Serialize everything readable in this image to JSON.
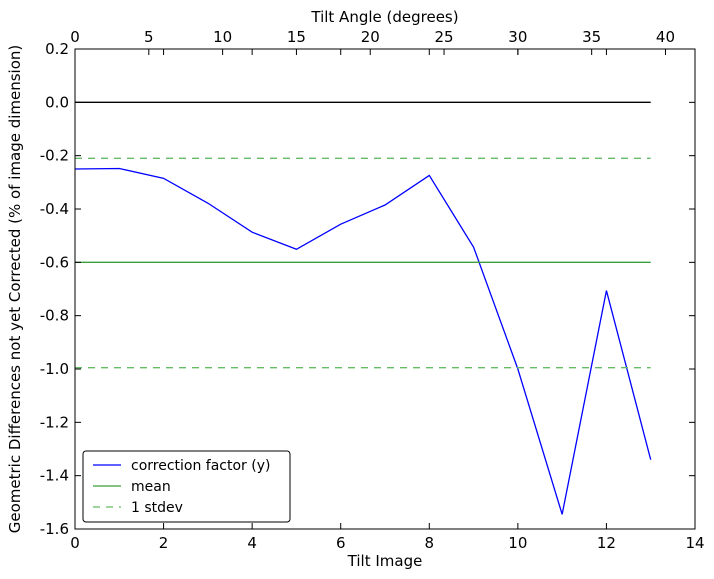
{
  "chart_data": {
    "type": "line",
    "title": "",
    "xlabel": "Tilt Image",
    "x2label": "Tilt Angle (degrees)",
    "ylabel": "Geometric Differences not yet Corrected (% of image dimension)",
    "xlim": [
      0,
      14
    ],
    "x2lim": [
      0,
      42
    ],
    "ylim": [
      -1.6,
      0.2
    ],
    "xticks": [
      0,
      2,
      4,
      6,
      8,
      10,
      12,
      14
    ],
    "x2ticks": [
      0,
      5,
      10,
      15,
      20,
      25,
      30,
      35,
      40
    ],
    "yticks": [
      -1.6,
      -1.4,
      -1.2,
      -1.0,
      -0.8,
      -0.6,
      -0.4,
      -0.2,
      0.0,
      0.2
    ],
    "ytick_labels": [
      "-1.6",
      "-1.4",
      "-1.2",
      "-1.0",
      "-0.8",
      "-0.6",
      "-0.4",
      "-0.2",
      "0.0",
      "0.2"
    ],
    "grid": false,
    "legend_position": "lower-left",
    "series": [
      {
        "name": "correction factor (y)",
        "style": "solid",
        "color": "#0000ff",
        "x": [
          0,
          1,
          2,
          3,
          4,
          5,
          6,
          7,
          8,
          9,
          10,
          11,
          12,
          13
        ],
        "values": [
          -0.25,
          -0.248,
          -0.285,
          -0.378,
          -0.487,
          -0.551,
          -0.457,
          -0.385,
          -0.274,
          -0.543,
          -1.0,
          -1.545,
          -0.706,
          -1.34
        ]
      },
      {
        "name": "mean",
        "style": "solid",
        "color": "#3a9e3a",
        "x": [
          0,
          13
        ],
        "values": [
          -0.6,
          -0.6
        ]
      },
      {
        "name": "1 stdev",
        "style": "dashed",
        "color": "#66bb66",
        "x": [
          0,
          13
        ],
        "values": [
          -0.21,
          -0.21
        ]
      },
      {
        "name": "",
        "style": "dashed",
        "color": "#66bb66",
        "x": [
          0,
          13
        ],
        "values": [
          -0.995,
          -0.995
        ]
      },
      {
        "name": "",
        "style": "solid",
        "color": "#000000",
        "x": [
          0,
          13
        ],
        "values": [
          0.0,
          0.0
        ]
      }
    ],
    "legend": [
      {
        "label": "correction factor (y)",
        "color": "#0000ff",
        "style": "solid"
      },
      {
        "label": "mean",
        "color": "#3a9e3a",
        "style": "solid"
      },
      {
        "label": "1 stdev",
        "color": "#66bb66",
        "style": "dashed"
      }
    ]
  }
}
